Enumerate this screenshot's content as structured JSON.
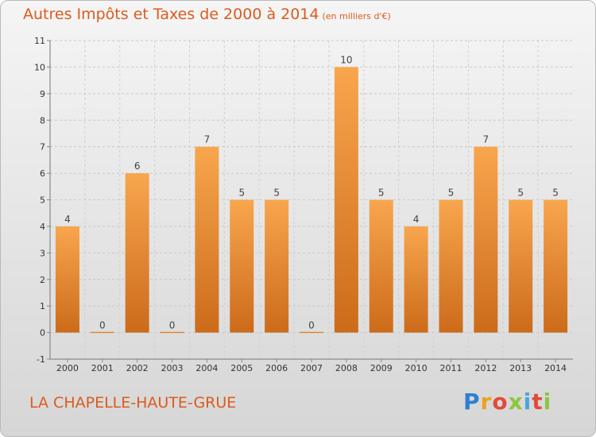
{
  "chart_data": {
    "type": "bar",
    "title": "Autres Impôts et Taxes de 2000 à 2014",
    "unit_label": "(en milliers d'€)",
    "categories": [
      "2000",
      "2001",
      "2002",
      "2003",
      "2004",
      "2005",
      "2006",
      "2007",
      "2008",
      "2009",
      "2010",
      "2011",
      "2012",
      "2013",
      "2014"
    ],
    "values": [
      4,
      0,
      6,
      0,
      7,
      5,
      5,
      0,
      10,
      5,
      4,
      5,
      7,
      5,
      5
    ],
    "value_labels": [
      "4",
      "0",
      "6",
      "0",
      "7",
      "5",
      "5",
      "0",
      "10",
      "5",
      "4",
      "5",
      "7",
      "5",
      "5"
    ],
    "yticks": [
      "-1",
      "0",
      "1",
      "2",
      "3",
      "4",
      "5",
      "6",
      "7",
      "8",
      "9",
      "10",
      "11"
    ],
    "ylim": [
      -1,
      11
    ],
    "grid": true,
    "bar_color": "#f08a2c"
  },
  "footer": {
    "commune": "LA CHAPELLE-HAUTE-GRUE",
    "logo": {
      "p": "P",
      "r": "r",
      "o": "o",
      "x": "x",
      "i": "i",
      "t": "t",
      "i2": "i"
    }
  }
}
